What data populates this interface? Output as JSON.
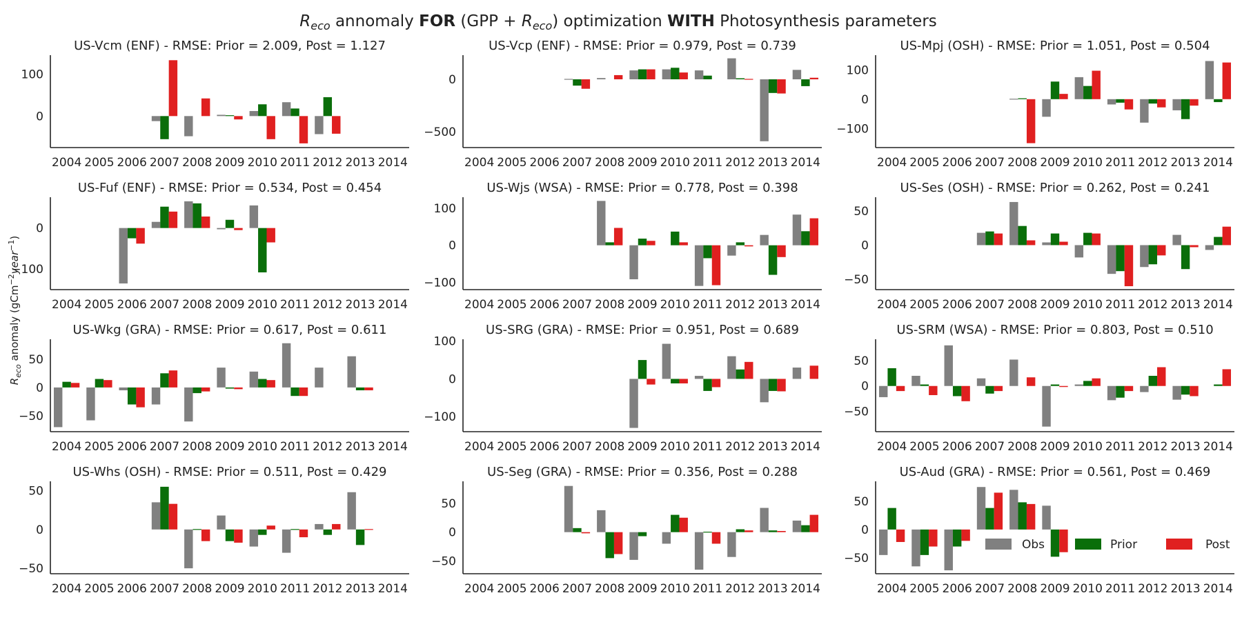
{
  "figure": {
    "title_italic": "R",
    "title_sub": "eco",
    "title_mid1": " annomaly ",
    "title_bold1": "FOR",
    "title_mid2": " (GPP + ",
    "title_italic2": "R",
    "title_sub2": "eco",
    "title_mid3": ") optimization ",
    "title_bold2": "WITH",
    "title_end": " Photosynthesis parameters",
    "ylabel_r": "R",
    "ylabel_sub": "eco",
    "ylabel_rest": " anomaly (gCm",
    "ylabel_sup1": "−2",
    "ylabel_mid": "year",
    "ylabel_sup2": "−1",
    "ylabel_end": ")"
  },
  "legend": {
    "obs": "Obs",
    "prior": "Prior",
    "post": "Post"
  },
  "colors": {
    "obs": "#808080",
    "prior": "#0a6e0a",
    "post": "#e02020",
    "axis": "#222222"
  },
  "chart_data": [
    {
      "type": "bar",
      "title": "US-Vcm (ENF) - RMSE: Prior = 2.009, Post = 1.127",
      "categories": [
        "2004",
        "2005",
        "2006",
        "2007",
        "2008",
        "2009",
        "2010",
        "2011",
        "2012",
        "2013",
        "2014"
      ],
      "ylim": [
        -75,
        145
      ],
      "yticks": [
        0,
        100
      ],
      "series": [
        {
          "name": "Obs",
          "values": [
            null,
            null,
            null,
            -12,
            -48,
            3,
            12,
            33,
            -43,
            null,
            null
          ]
        },
        {
          "name": "Prior",
          "values": [
            null,
            null,
            null,
            -55,
            null,
            2,
            28,
            18,
            45,
            null,
            null
          ]
        },
        {
          "name": "Post",
          "values": [
            null,
            null,
            null,
            133,
            42,
            -8,
            -55,
            -65,
            -42,
            null,
            null
          ]
        }
      ]
    },
    {
      "type": "bar",
      "title": "US-Vcp (ENF) - RMSE: Prior = 0.979, Post = 0.739",
      "categories": [
        "2004",
        "2005",
        "2006",
        "2007",
        "2008",
        "2009",
        "2010",
        "2011",
        "2012",
        "2013",
        "2014"
      ],
      "ylim": [
        -650,
        230
      ],
      "yticks": [
        -500,
        0
      ],
      "series": [
        {
          "name": "Obs",
          "values": [
            null,
            null,
            null,
            -5,
            12,
            85,
            95,
            85,
            200,
            -590,
            90
          ]
        },
        {
          "name": "Prior",
          "values": [
            null,
            null,
            null,
            -60,
            null,
            95,
            110,
            35,
            10,
            -130,
            -65
          ]
        },
        {
          "name": "Post",
          "values": [
            null,
            null,
            null,
            -90,
            40,
            95,
            65,
            null,
            -5,
            -135,
            15
          ]
        }
      ]
    },
    {
      "type": "bar",
      "title": "US-Mpj (OSH) - RMSE: Prior = 1.051, Post = 0.504",
      "categories": [
        "2004",
        "2005",
        "2006",
        "2007",
        "2008",
        "2009",
        "2010",
        "2011",
        "2012",
        "2013",
        "2014"
      ],
      "ylim": [
        -165,
        150
      ],
      "yticks": [
        -100,
        0,
        100
      ],
      "series": [
        {
          "name": "Obs",
          "values": [
            null,
            null,
            null,
            null,
            0,
            -60,
            75,
            -18,
            -80,
            -38,
            130
          ]
        },
        {
          "name": "Prior",
          "values": [
            null,
            null,
            null,
            null,
            3,
            60,
            45,
            -12,
            -15,
            -68,
            -10
          ]
        },
        {
          "name": "Post",
          "values": [
            null,
            null,
            null,
            null,
            -150,
            18,
            97,
            -35,
            -28,
            -22,
            125
          ]
        }
      ]
    },
    {
      "type": "bar",
      "title": "US-Fuf (ENF) - RMSE: Prior = 0.534, Post = 0.454",
      "categories": [
        "2004",
        "2005",
        "2006",
        "2007",
        "2008",
        "2009",
        "2010",
        "2011",
        "2012",
        "2013",
        "2014"
      ],
      "ylim": [
        -150,
        75
      ],
      "yticks": [
        -100,
        0
      ],
      "series": [
        {
          "name": "Obs",
          "values": [
            null,
            null,
            -135,
            15,
            65,
            -3,
            55,
            null,
            null,
            null,
            null
          ]
        },
        {
          "name": "Prior",
          "values": [
            null,
            null,
            -25,
            52,
            60,
            20,
            -108,
            null,
            null,
            null,
            null
          ]
        },
        {
          "name": "Post",
          "values": [
            null,
            null,
            -38,
            40,
            28,
            -5,
            -35,
            null,
            null,
            null,
            null
          ]
        }
      ]
    },
    {
      "type": "bar",
      "title": "US-Wjs (WSA) - RMSE: Prior = 0.778, Post = 0.398",
      "categories": [
        "2004",
        "2005",
        "2006",
        "2007",
        "2008",
        "2009",
        "2010",
        "2011",
        "2012",
        "2013",
        "2014"
      ],
      "ylim": [
        -120,
        130
      ],
      "yticks": [
        -100,
        0,
        100
      ],
      "series": [
        {
          "name": "Obs",
          "values": [
            null,
            null,
            null,
            null,
            120,
            -92,
            null,
            -110,
            -28,
            28,
            83
          ]
        },
        {
          "name": "Prior",
          "values": [
            null,
            null,
            null,
            null,
            8,
            18,
            37,
            -35,
            8,
            -80,
            38
          ]
        },
        {
          "name": "Post",
          "values": [
            null,
            null,
            null,
            null,
            47,
            12,
            8,
            -108,
            -3,
            -32,
            73
          ]
        }
      ]
    },
    {
      "type": "bar",
      "title": "US-Ses (OSH) - RMSE: Prior = 0.262, Post = 0.241",
      "categories": [
        "2004",
        "2005",
        "2006",
        "2007",
        "2008",
        "2009",
        "2010",
        "2011",
        "2012",
        "2013",
        "2014"
      ],
      "ylim": [
        -65,
        70
      ],
      "yticks": [
        -50,
        0,
        50
      ],
      "series": [
        {
          "name": "Obs",
          "values": [
            null,
            null,
            null,
            18,
            63,
            4,
            -18,
            -42,
            -32,
            15,
            -7
          ]
        },
        {
          "name": "Prior",
          "values": [
            null,
            null,
            null,
            20,
            28,
            17,
            18,
            -38,
            -28,
            -35,
            12
          ]
        },
        {
          "name": "Post",
          "values": [
            null,
            null,
            null,
            17,
            7,
            5,
            17,
            -60,
            -15,
            -3,
            27
          ]
        }
      ]
    },
    {
      "type": "bar",
      "title": "US-Wkg (GRA) - RMSE: Prior = 0.617, Post = 0.611",
      "categories": [
        "2004",
        "2005",
        "2006",
        "2007",
        "2008",
        "2009",
        "2010",
        "2011",
        "2012",
        "2013",
        "2014"
      ],
      "ylim": [
        -78,
        85
      ],
      "yticks": [
        -50,
        0,
        50
      ],
      "series": [
        {
          "name": "Obs",
          "values": [
            -70,
            -58,
            -5,
            -30,
            -60,
            35,
            28,
            78,
            35,
            55,
            null
          ]
        },
        {
          "name": "Prior",
          "values": [
            10,
            15,
            -30,
            25,
            -10,
            -2,
            15,
            -15,
            null,
            -5,
            null
          ]
        },
        {
          "name": "Post",
          "values": [
            8,
            13,
            -35,
            30,
            -7,
            -3,
            13,
            -15,
            null,
            -5,
            null
          ]
        }
      ]
    },
    {
      "type": "bar",
      "title": "US-SRG (GRA) - RMSE: Prior = 0.951, Post = 0.689",
      "categories": [
        "2004",
        "2005",
        "2006",
        "2007",
        "2008",
        "2009",
        "2010",
        "2011",
        "2012",
        "2013",
        "2014"
      ],
      "ylim": [
        -140,
        105
      ],
      "yticks": [
        -100,
        0,
        100
      ],
      "series": [
        {
          "name": "Obs",
          "values": [
            null,
            null,
            null,
            null,
            null,
            -130,
            93,
            8,
            60,
            -62,
            30
          ]
        },
        {
          "name": "Prior",
          "values": [
            null,
            null,
            null,
            null,
            null,
            50,
            -12,
            -32,
            25,
            -32,
            null
          ]
        },
        {
          "name": "Post",
          "values": [
            null,
            null,
            null,
            null,
            null,
            -15,
            -12,
            -22,
            45,
            -33,
            35
          ]
        }
      ]
    },
    {
      "type": "bar",
      "title": "US-SRM (WSA) - RMSE: Prior = 0.803, Post = 0.510",
      "categories": [
        "2004",
        "2005",
        "2006",
        "2007",
        "2008",
        "2009",
        "2010",
        "2011",
        "2012",
        "2013",
        "2014"
      ],
      "ylim": [
        -90,
        92
      ],
      "yticks": [
        -50,
        0,
        50
      ],
      "series": [
        {
          "name": "Obs",
          "values": [
            -22,
            20,
            80,
            15,
            52,
            -80,
            3,
            -28,
            -12,
            -27,
            null
          ]
        },
        {
          "name": "Prior",
          "values": [
            35,
            3,
            -20,
            -15,
            null,
            3,
            10,
            -23,
            20,
            -17,
            3
          ]
        },
        {
          "name": "Post",
          "values": [
            -10,
            -18,
            -30,
            -10,
            17,
            -2,
            15,
            -10,
            37,
            -20,
            33
          ]
        }
      ]
    },
    {
      "type": "bar",
      "title": "US-Whs (OSH) - RMSE: Prior = 0.511, Post = 0.429",
      "categories": [
        "2004",
        "2005",
        "2006",
        "2007",
        "2008",
        "2009",
        "2010",
        "2011",
        "2012",
        "2013",
        "2014"
      ],
      "ylim": [
        -57,
        62
      ],
      "yticks": [
        -50,
        0,
        50
      ],
      "series": [
        {
          "name": "Obs",
          "values": [
            null,
            null,
            null,
            35,
            -50,
            18,
            -22,
            -30,
            7,
            48,
            null
          ]
        },
        {
          "name": "Prior",
          "values": [
            null,
            null,
            null,
            55,
            0,
            -15,
            -7,
            0,
            -7,
            -20,
            null
          ]
        },
        {
          "name": "Post",
          "values": [
            null,
            null,
            null,
            33,
            -15,
            -17,
            5,
            -10,
            7,
            0,
            null
          ]
        }
      ]
    },
    {
      "type": "bar",
      "title": "US-Seg (GRA) - RMSE: Prior = 0.356, Post = 0.288",
      "categories": [
        "2004",
        "2005",
        "2006",
        "2007",
        "2008",
        "2009",
        "2010",
        "2011",
        "2012",
        "2013",
        "2014"
      ],
      "ylim": [
        -72,
        88
      ],
      "yticks": [
        -50,
        0,
        50
      ],
      "series": [
        {
          "name": "Obs",
          "values": [
            null,
            null,
            null,
            80,
            38,
            -48,
            -20,
            -65,
            -43,
            42,
            20
          ]
        },
        {
          "name": "Prior",
          "values": [
            null,
            null,
            null,
            7,
            -45,
            -7,
            30,
            0,
            5,
            3,
            12
          ]
        },
        {
          "name": "Post",
          "values": [
            null,
            null,
            null,
            -2,
            -38,
            null,
            25,
            -20,
            3,
            2,
            30
          ]
        }
      ]
    },
    {
      "type": "bar",
      "title": "US-Aud (GRA) - RMSE: Prior = 0.561, Post = 0.469",
      "categories": [
        "2004",
        "2005",
        "2006",
        "2007",
        "2008",
        "2009",
        "2010",
        "2011",
        "2012",
        "2013",
        "2014"
      ],
      "ylim": [
        -78,
        85
      ],
      "yticks": [
        -50,
        0,
        50
      ],
      "series": [
        {
          "name": "Obs",
          "values": [
            -45,
            -65,
            -72,
            75,
            70,
            42,
            null,
            null,
            null,
            null,
            null
          ]
        },
        {
          "name": "Prior",
          "values": [
            38,
            -45,
            -30,
            38,
            48,
            -48,
            null,
            null,
            null,
            null,
            null
          ]
        },
        {
          "name": "Post",
          "values": [
            -22,
            -30,
            -20,
            65,
            45,
            -40,
            null,
            null,
            null,
            null,
            null
          ]
        }
      ]
    }
  ]
}
